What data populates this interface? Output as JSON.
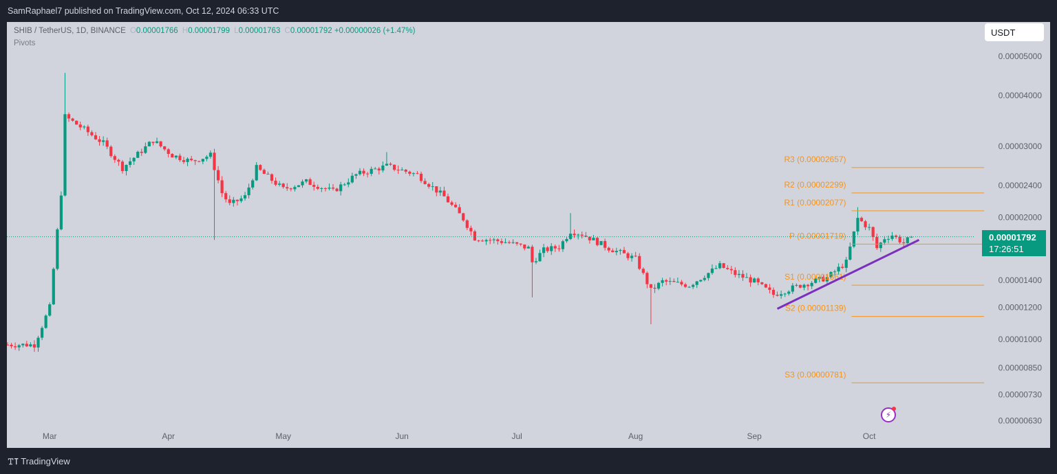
{
  "header": {
    "publish_text": "SamRaphael7 published on TradingView.com, Oct 12, 2024 06:33 UTC"
  },
  "legend": {
    "symbol": "SHIB / TetherUS, 1D, BINANCE",
    "open_key": "O",
    "open": "0.00001766",
    "high_key": "H",
    "high": "0.00001799",
    "low_key": "L",
    "low": "0.00001763",
    "close_key": "C",
    "close": "0.00001792",
    "change": "+0.00000026 (+1.47%)",
    "indicator": "Pivots"
  },
  "currency": "USDT",
  "last_price": {
    "price": "0.00001792",
    "countdown": "17:26:51"
  },
  "footer": {
    "logo": "TradingView"
  },
  "colors": {
    "up": "#089981",
    "down": "#f23645",
    "pivot": "#f7931a",
    "trendline": "#7b2fbe",
    "badge": "#089981"
  },
  "chart_data": {
    "type": "candlestick",
    "symbol": "SHIB / TetherUS",
    "timeframe": "1D",
    "exchange": "BINANCE",
    "y_scale": "log",
    "y_ticks": [
      {
        "v": 5e-05,
        "label": "0.00005000"
      },
      {
        "v": 4e-05,
        "label": "0.00004000"
      },
      {
        "v": 3e-05,
        "label": "0.00003000"
      },
      {
        "v": 2.4e-05,
        "label": "0.00002400"
      },
      {
        "v": 2e-05,
        "label": "0.00002000"
      },
      {
        "v": 1.4e-05,
        "label": "0.00001400"
      },
      {
        "v": 1.2e-05,
        "label": "0.00001200"
      },
      {
        "v": 1e-05,
        "label": "0.00001000"
      },
      {
        "v": 8.5e-06,
        "label": "0.00000850"
      },
      {
        "v": 7.3e-06,
        "label": "0.00000730"
      },
      {
        "v": 6.3e-06,
        "label": "0.00000630"
      }
    ],
    "x_ticks": [
      "Mar",
      "Apr",
      "May",
      "Jun",
      "Jul",
      "Aug",
      "Sep",
      "Oct"
    ],
    "keypoints": [
      {
        "date": "2024-02-19",
        "close": 9.7e-06
      },
      {
        "date": "2024-02-26",
        "close": 9.7e-06
      },
      {
        "date": "2024-03-01",
        "close": 1.2e-05
      },
      {
        "date": "2024-03-04",
        "close": 2.3e-05
      },
      {
        "date": "2024-03-05",
        "close": 3.55e-05
      },
      {
        "date": "2024-03-10",
        "close": 3.3e-05
      },
      {
        "date": "2024-03-15",
        "close": 3.05e-05
      },
      {
        "date": "2024-03-20",
        "close": 2.65e-05
      },
      {
        "date": "2024-03-28",
        "close": 3.1e-05
      },
      {
        "date": "2024-04-02",
        "close": 2.85e-05
      },
      {
        "date": "2024-04-07",
        "close": 2.75e-05
      },
      {
        "date": "2024-04-12",
        "close": 2.85e-05
      },
      {
        "date": "2024-04-15",
        "close": 2.3e-05
      },
      {
        "date": "2024-04-17",
        "close": 2.15e-05
      },
      {
        "date": "2024-04-21",
        "close": 2.25e-05
      },
      {
        "date": "2024-04-24",
        "close": 2.65e-05
      },
      {
        "date": "2024-05-01",
        "close": 2.35e-05
      },
      {
        "date": "2024-05-07",
        "close": 2.45e-05
      },
      {
        "date": "2024-05-14",
        "close": 2.32e-05
      },
      {
        "date": "2024-05-20",
        "close": 2.55e-05
      },
      {
        "date": "2024-05-28",
        "close": 2.68e-05
      },
      {
        "date": "2024-06-05",
        "close": 2.55e-05
      },
      {
        "date": "2024-06-12",
        "close": 2.25e-05
      },
      {
        "date": "2024-06-17",
        "close": 1.985e-05
      },
      {
        "date": "2024-06-20",
        "close": 1.78e-05
      },
      {
        "date": "2024-06-28",
        "close": 1.74e-05
      },
      {
        "date": "2024-07-04",
        "close": 1.68e-05
      },
      {
        "date": "2024-07-05",
        "close": 1.55e-05
      },
      {
        "date": "2024-07-08",
        "close": 1.66e-05
      },
      {
        "date": "2024-07-12",
        "close": 1.69e-05
      },
      {
        "date": "2024-07-15",
        "close": 1.85e-05
      },
      {
        "date": "2024-07-18",
        "close": 1.82e-05
      },
      {
        "date": "2024-07-25",
        "close": 1.68e-05
      },
      {
        "date": "2024-08-01",
        "close": 1.58e-05
      },
      {
        "date": "2024-08-05",
        "close": 1.32e-05
      },
      {
        "date": "2024-08-08",
        "close": 1.39e-05
      },
      {
        "date": "2024-08-15",
        "close": 1.36e-05
      },
      {
        "date": "2024-08-23",
        "close": 1.52e-05
      },
      {
        "date": "2024-08-27",
        "close": 1.45e-05
      },
      {
        "date": "2024-09-01",
        "close": 1.39e-05
      },
      {
        "date": "2024-09-06",
        "close": 1.29e-05
      },
      {
        "date": "2024-09-13",
        "close": 1.36e-05
      },
      {
        "date": "2024-09-20",
        "close": 1.42e-05
      },
      {
        "date": "2024-09-25",
        "close": 1.55e-05
      },
      {
        "date": "2024-09-28",
        "close": 1.99e-05
      },
      {
        "date": "2024-10-01",
        "close": 1.88e-05
      },
      {
        "date": "2024-10-03",
        "close": 1.68e-05
      },
      {
        "date": "2024-10-05",
        "close": 1.78e-05
      },
      {
        "date": "2024-10-07",
        "close": 1.81e-05
      },
      {
        "date": "2024-10-10",
        "close": 1.73e-05
      },
      {
        "date": "2024-10-12",
        "close": 1.792e-05
      }
    ],
    "pivot_window": {
      "start": "2024-09-30",
      "end": "2024-10-31"
    },
    "pivots": [
      {
        "name": "R3",
        "value": 2.657e-05,
        "label": "R3 (0.00002657)"
      },
      {
        "name": "R2",
        "value": 2.299e-05,
        "label": "R2 (0.00002299)"
      },
      {
        "name": "R1",
        "value": 2.077e-05,
        "label": "R1 (0.00002077)"
      },
      {
        "name": "P",
        "value": 1.719e-05,
        "label": "P (0.00001719)"
      },
      {
        "name": "S1",
        "value": 1.361e-05,
        "label": "S1 (0.00001361)"
      },
      {
        "name": "S2",
        "value": 1.139e-05,
        "label": "S2 (0.00001139)"
      },
      {
        "name": "S3",
        "value": 7.81e-06,
        "label": "S3 (0.00000781)"
      }
    ],
    "trendline": [
      {
        "date": "2024-09-07",
        "price": 1.19e-05
      },
      {
        "date": "2024-10-14",
        "price": 1.76e-05
      }
    ],
    "last_close": 1.792e-05
  }
}
